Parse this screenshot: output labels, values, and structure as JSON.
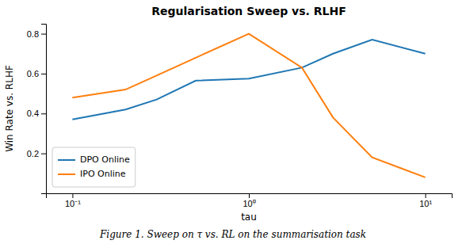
{
  "chart_data": {
    "type": "line",
    "title": "Regularisation Sweep vs. RLHF",
    "x_label": "tau",
    "y_label": "Win Rate vs. RLHF",
    "annotations": [
      "Figure 1.  Sweep on τ vs. RL on the summarisation task"
    ],
    "x": [
      0.1,
      0.2,
      0.3,
      0.5,
      1.0,
      2.0,
      3.0,
      5.0,
      10.0
    ],
    "series": [
      {
        "name": "DPO Online",
        "color": "#1f77b4",
        "values": [
          0.37,
          0.42,
          0.47,
          0.565,
          0.575,
          0.63,
          0.7,
          0.77,
          0.7
        ]
      },
      {
        "name": "IPO Online",
        "color": "#ff7f0e",
        "values": [
          0.48,
          0.52,
          0.59,
          0.68,
          0.8,
          0.63,
          0.38,
          0.18,
          0.08
        ]
      }
    ],
    "log": "x",
    "xlim": [
      0.07079457843841379,
      14.125375446227544
    ],
    "xticks": [
      {
        "value": 0.1,
        "label": "10⁻¹"
      },
      {
        "value": 1,
        "label": "10⁰"
      },
      {
        "value": 10,
        "label": "10¹"
      }
    ],
    "ylim": [
      0.0,
      0.85
    ],
    "yticks": [
      0.2,
      0.4,
      0.6,
      0.8
    ],
    "legend": "lower left",
    "grid": false
  }
}
